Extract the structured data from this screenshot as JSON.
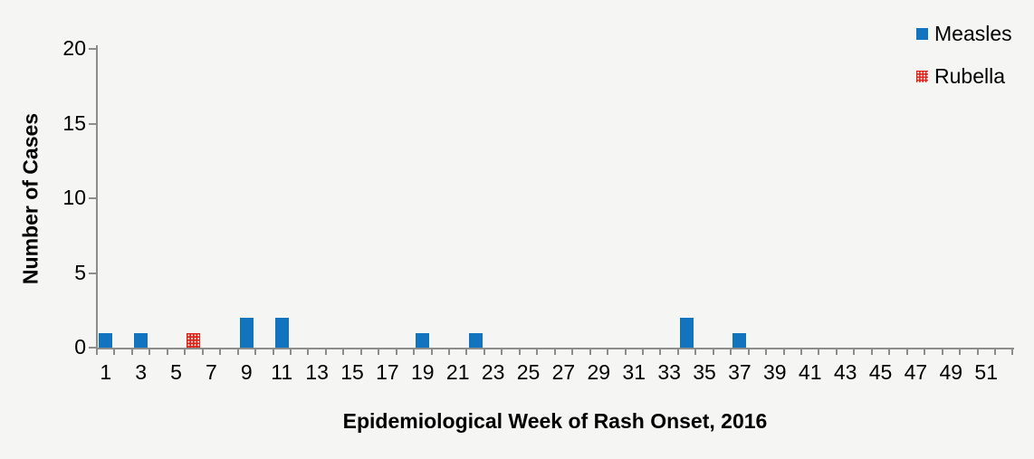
{
  "chart_data": {
    "type": "bar",
    "title": "",
    "xlabel": "Epidemiological Week of Rash Onset, 2016",
    "ylabel": "Number of Cases",
    "x_unit": "epidemiological week",
    "weeks_total": 52,
    "x_tick_labels": [
      1,
      3,
      5,
      7,
      9,
      11,
      13,
      15,
      17,
      19,
      21,
      23,
      25,
      27,
      29,
      31,
      33,
      35,
      37,
      39,
      41,
      43,
      45,
      47,
      49,
      51
    ],
    "y_ticks": [
      0,
      5,
      10,
      15,
      20
    ],
    "ylim": [
      0,
      20
    ],
    "grid": false,
    "legend_position": "top-right",
    "series": [
      {
        "name": "Measles",
        "color": "#1273be",
        "pattern": "solid",
        "points": [
          {
            "week": 1,
            "cases": 1
          },
          {
            "week": 3,
            "cases": 1
          },
          {
            "week": 9,
            "cases": 2
          },
          {
            "week": 11,
            "cases": 2
          },
          {
            "week": 19,
            "cases": 1
          },
          {
            "week": 22,
            "cases": 1
          },
          {
            "week": 34,
            "cases": 2
          },
          {
            "week": 37,
            "cases": 1
          }
        ]
      },
      {
        "name": "Rubella",
        "color": "#de2118",
        "pattern": "dotted-white",
        "points": [
          {
            "week": 6,
            "cases": 1
          }
        ]
      }
    ]
  },
  "colors": {
    "background": "#f5f5f3",
    "axis": "#8c8c8c",
    "text": "#000000",
    "measles_blue": "#1273be",
    "rubella_red": "#de2118"
  },
  "legend": {
    "items": [
      {
        "label": "Measles"
      },
      {
        "label": "Rubella"
      }
    ]
  }
}
